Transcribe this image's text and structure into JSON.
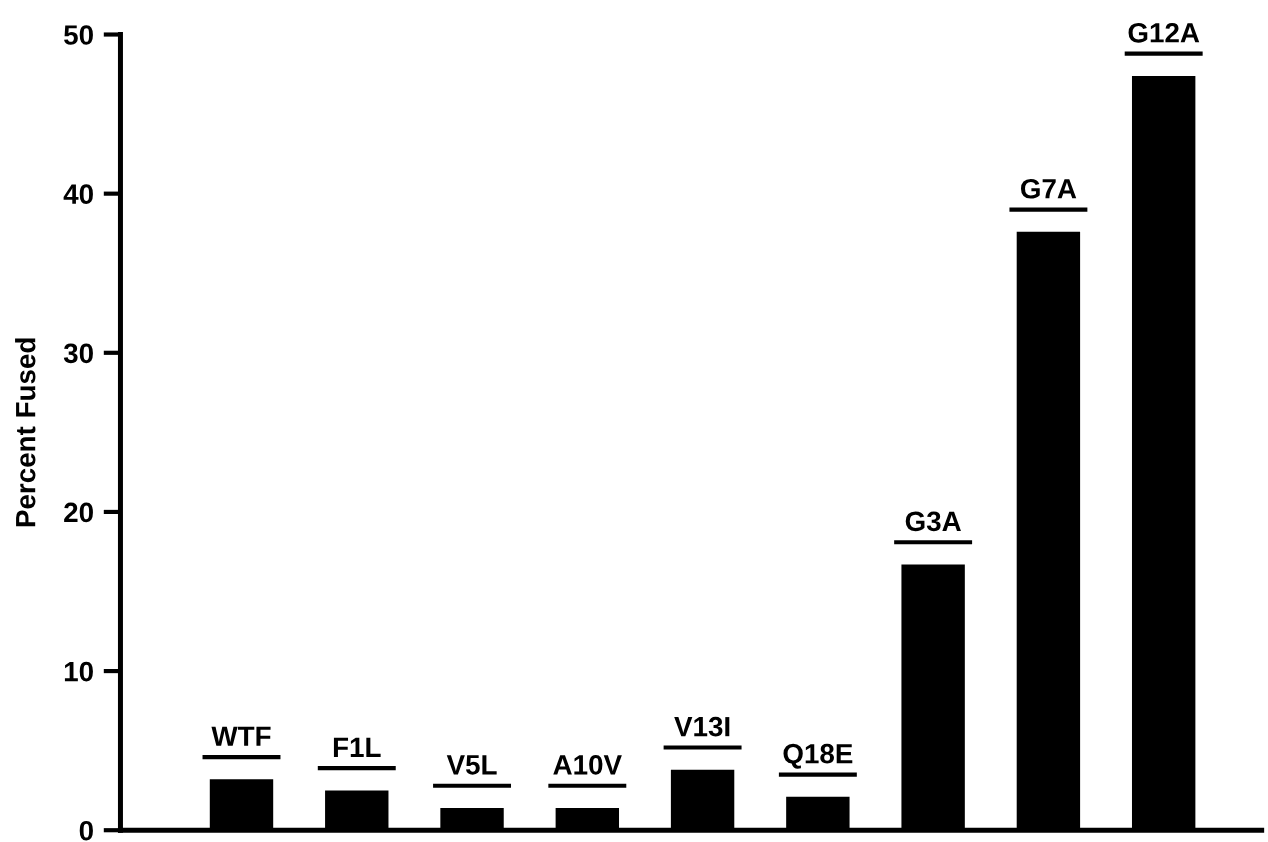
{
  "chart_data": {
    "type": "bar",
    "ylabel": "Percent Fused",
    "categories": [
      "WTF",
      "F1L",
      "V5L",
      "A10V",
      "V13I",
      "Q18E",
      "G3A",
      "G7A",
      "G12A"
    ],
    "values": [
      3.2,
      2.5,
      1.4,
      1.4,
      3.8,
      2.1,
      16.7,
      37.6,
      47.4
    ],
    "color": "#000000",
    "ylim": [
      0,
      50
    ],
    "yticks": [
      0,
      10,
      20,
      30,
      40,
      50
    ],
    "grid": false
  }
}
